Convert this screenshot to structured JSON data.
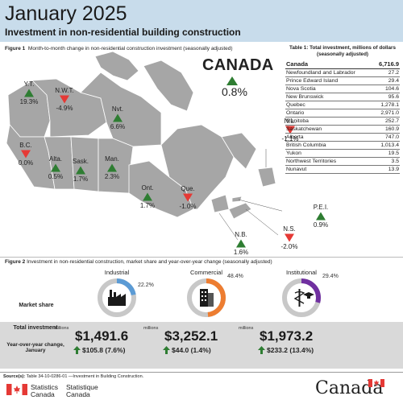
{
  "header": {
    "title": "January 2025",
    "subtitle": "Investment in non-residential building construction"
  },
  "figure1": {
    "label": "Figure 1",
    "title": "Month-to-month change in non-residential construction investment (seasonally adjusted)",
    "canada_label": "CANADA",
    "canada_value": "0.8%",
    "canada_direction": "up"
  },
  "provinces": [
    {
      "name": "Y.T.",
      "value": "19.3%",
      "direction": "up"
    },
    {
      "name": "N.W.T.",
      "value": "-4.9%",
      "direction": "down"
    },
    {
      "name": "Nvt.",
      "value": "6.6%",
      "direction": "up"
    },
    {
      "name": "B.C.",
      "value": "0.0%",
      "direction": "down"
    },
    {
      "name": "Alta.",
      "value": "0.5%",
      "direction": "up"
    },
    {
      "name": "Sask.",
      "value": "1.7%",
      "direction": "up"
    },
    {
      "name": "Man.",
      "value": "2.3%",
      "direction": "up"
    },
    {
      "name": "Ont.",
      "value": "1.7%",
      "direction": "up"
    },
    {
      "name": "Que.",
      "value": "-1.0%",
      "direction": "down"
    },
    {
      "name": "N.L.",
      "value": "-1.1%",
      "direction": "down"
    },
    {
      "name": "P.E.I.",
      "value": "0.9%",
      "direction": "up"
    },
    {
      "name": "N.S.",
      "value": "-2.0%",
      "direction": "down"
    },
    {
      "name": "N.B.",
      "value": "1.6%",
      "direction": "up"
    }
  ],
  "table1": {
    "label": "Table 1",
    "title": "Total investment, millions of dollars (seasonally adjusted)",
    "header": {
      "name": "Canada",
      "value": "6,716.9"
    },
    "rows": [
      {
        "name": "Newfoundland and Labrador",
        "value": "27.2"
      },
      {
        "name": "Prince Edward Island",
        "value": "29.4"
      },
      {
        "name": "Nova Scotia",
        "value": "104.6"
      },
      {
        "name": "New Brunswick",
        "value": "95.6"
      },
      {
        "name": "Quebec",
        "value": "1,278.1"
      },
      {
        "name": "Ontario",
        "value": "2,971.0"
      },
      {
        "name": "Manitoba",
        "value": "252.7"
      },
      {
        "name": "Saskatchewan",
        "value": "160.9"
      },
      {
        "name": "Alberta",
        "value": "747.0"
      },
      {
        "name": "British Columbia",
        "value": "1,013.4"
      },
      {
        "name": "Yukon",
        "value": "19.5"
      },
      {
        "name": "Northwest Territories",
        "value": "3.5"
      },
      {
        "name": "Nunavut",
        "value": "13.9"
      }
    ]
  },
  "figure2": {
    "label": "Figure 2",
    "title": "Investment in non-residential construction, market share and year-over-year change (seasonally adjusted)",
    "row_labels": {
      "market_share": "Market share",
      "total_investment": "Total investment",
      "yoy": "Year-over-year change, January"
    },
    "millions_label": "millions",
    "sectors": [
      {
        "name": "Industrial",
        "share": "22.2%",
        "share_value": 22.2,
        "color": "#5b9bd5",
        "amount": "$1,491.6",
        "change": "$105.8 (7.6%)",
        "direction": "up"
      },
      {
        "name": "Commercial",
        "share": "48.4%",
        "share_value": 48.4,
        "color": "#ed7d31",
        "amount": "$3,252.1",
        "change": "$44.0 (1.4%)",
        "direction": "up"
      },
      {
        "name": "Institutional",
        "share": "29.4%",
        "share_value": 29.4,
        "color": "#7030a0",
        "amount": "$1,973.2",
        "change": "$233.2 (13.4%)",
        "direction": "up"
      }
    ]
  },
  "source": {
    "label": "Source(s):",
    "text": "Table 34-10-0286-01 —Investment in Building Construction."
  },
  "footer": {
    "agency_en_1": "Statistics",
    "agency_en_2": "Canada",
    "agency_fr_1": "Statistique",
    "agency_fr_2": "Canada",
    "wordmark": "Canada"
  },
  "colors": {
    "up": "#2e7d32",
    "down": "#e53935",
    "map_fill": "#a6a6a6",
    "header_bg": "#c8dceb"
  },
  "chart_data": [
    {
      "type": "map",
      "title": "Month-to-month change in non-residential construction investment (seasonally adjusted)",
      "categories": [
        "Y.T.",
        "N.W.T.",
        "Nvt.",
        "B.C.",
        "Alta.",
        "Sask.",
        "Man.",
        "Ont.",
        "Que.",
        "N.L.",
        "P.E.I.",
        "N.S.",
        "N.B.",
        "CANADA"
      ],
      "values": [
        19.3,
        -4.9,
        6.6,
        0.0,
        0.5,
        1.7,
        2.3,
        1.7,
        -1.0,
        -1.1,
        0.9,
        -2.0,
        1.6,
        0.8
      ]
    },
    {
      "type": "table",
      "title": "Total investment, millions of dollars (seasonally adjusted)",
      "categories": [
        "Canada",
        "Newfoundland and Labrador",
        "Prince Edward Island",
        "Nova Scotia",
        "New Brunswick",
        "Quebec",
        "Ontario",
        "Manitoba",
        "Saskatchewan",
        "Alberta",
        "British Columbia",
        "Yukon",
        "Northwest Territories",
        "Nunavut"
      ],
      "values": [
        6716.9,
        27.2,
        29.4,
        104.6,
        95.6,
        1278.1,
        2971.0,
        252.7,
        160.9,
        747.0,
        1013.4,
        19.5,
        3.5,
        13.9
      ]
    },
    {
      "type": "pie",
      "title": "Investment in non-residential construction, market share and year-over-year change (seasonally adjusted)",
      "categories": [
        "Industrial",
        "Commercial",
        "Institutional"
      ],
      "values": [
        22.2,
        48.4,
        29.4
      ]
    }
  ]
}
